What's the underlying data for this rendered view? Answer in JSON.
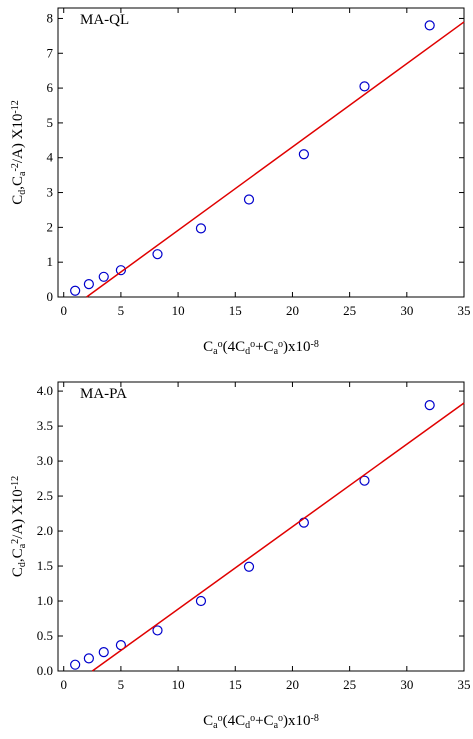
{
  "chart_data": [
    {
      "type": "scatter",
      "annotation": "MA-QL",
      "xlabel": [
        {
          "text": "C"
        },
        {
          "text": "a",
          "script": "sub"
        },
        {
          "text": "o",
          "script": "sup"
        },
        {
          "text": "(4C"
        },
        {
          "text": "d",
          "script": "sub"
        },
        {
          "text": "o",
          "script": "sup"
        },
        {
          "text": "+C"
        },
        {
          "text": "a",
          "script": "sub"
        },
        {
          "text": "o",
          "script": "sup"
        },
        {
          "text": ")x10"
        },
        {
          "text": "-8",
          "script": "sup"
        }
      ],
      "ylabel": [
        {
          "text": "C"
        },
        {
          "text": "d",
          "script": "sub"
        },
        {
          "text": ",C"
        },
        {
          "text": "a",
          "script": "sub"
        },
        {
          "text": "-2",
          "script": "sup"
        },
        {
          "text": "/A) X10"
        },
        {
          "text": "-12",
          "script": "sup"
        }
      ],
      "xlim": [
        -0.5,
        35
      ],
      "xticks": [
        0,
        5,
        10,
        15,
        20,
        25,
        30,
        35
      ],
      "ylim": [
        0,
        8.3
      ],
      "yticks": [
        0,
        1,
        2,
        3,
        4,
        5,
        6,
        7,
        8
      ],
      "series": [
        {
          "color": "#0000cc",
          "mode": "markers",
          "x": [
            1,
            2.2,
            3.5,
            5,
            8.2,
            12,
            16.2,
            21,
            26.3,
            32
          ],
          "values": [
            0.18,
            0.37,
            0.58,
            0.77,
            1.23,
            1.97,
            2.8,
            4.1,
            6.05,
            7.8
          ]
        },
        {
          "color": "#e00000",
          "mode": "line",
          "x": [
            2,
            35
          ],
          "values": [
            0,
            7.9
          ]
        }
      ]
    },
    {
      "type": "scatter",
      "annotation": "MA-PA",
      "xlabel": [
        {
          "text": "C"
        },
        {
          "text": "a",
          "script": "sub"
        },
        {
          "text": "o",
          "script": "sup"
        },
        {
          "text": "(4C"
        },
        {
          "text": "d",
          "script": "sub"
        },
        {
          "text": "o",
          "script": "sup"
        },
        {
          "text": "+C"
        },
        {
          "text": "a",
          "script": "sub"
        },
        {
          "text": "o",
          "script": "sup"
        },
        {
          "text": ")x10"
        },
        {
          "text": "-8",
          "script": "sup"
        }
      ],
      "ylabel": [
        {
          "text": "C"
        },
        {
          "text": "d",
          "script": "sub"
        },
        {
          "text": ",C"
        },
        {
          "text": "a",
          "script": "sub"
        },
        {
          "text": "2",
          "script": "sup"
        },
        {
          "text": "/A) X10"
        },
        {
          "text": "-12",
          "script": "sup"
        }
      ],
      "xlim": [
        -0.5,
        35
      ],
      "xticks": [
        0,
        5,
        10,
        15,
        20,
        25,
        30,
        35
      ],
      "ylim": [
        0,
        4.13
      ],
      "yticks": [
        {
          "value": 0,
          "label": "0.0"
        },
        0.5,
        {
          "value": 1,
          "label": "1.0"
        },
        1.5,
        {
          "value": 2,
          "label": "2.0"
        },
        2.5,
        {
          "value": 3,
          "label": "3.0"
        },
        3.5,
        {
          "value": 4,
          "label": "4.0"
        }
      ],
      "series": [
        {
          "color": "#0000cc",
          "mode": "markers",
          "x": [
            1,
            2.2,
            3.5,
            5,
            8.2,
            12,
            16.2,
            21,
            26.3,
            32
          ],
          "values": [
            0.09,
            0.18,
            0.27,
            0.37,
            0.58,
            1.0,
            1.49,
            2.12,
            2.72,
            3.8
          ]
        },
        {
          "color": "#e00000",
          "mode": "line",
          "x": [
            2.5,
            35
          ],
          "values": [
            0,
            3.83
          ]
        }
      ]
    }
  ]
}
